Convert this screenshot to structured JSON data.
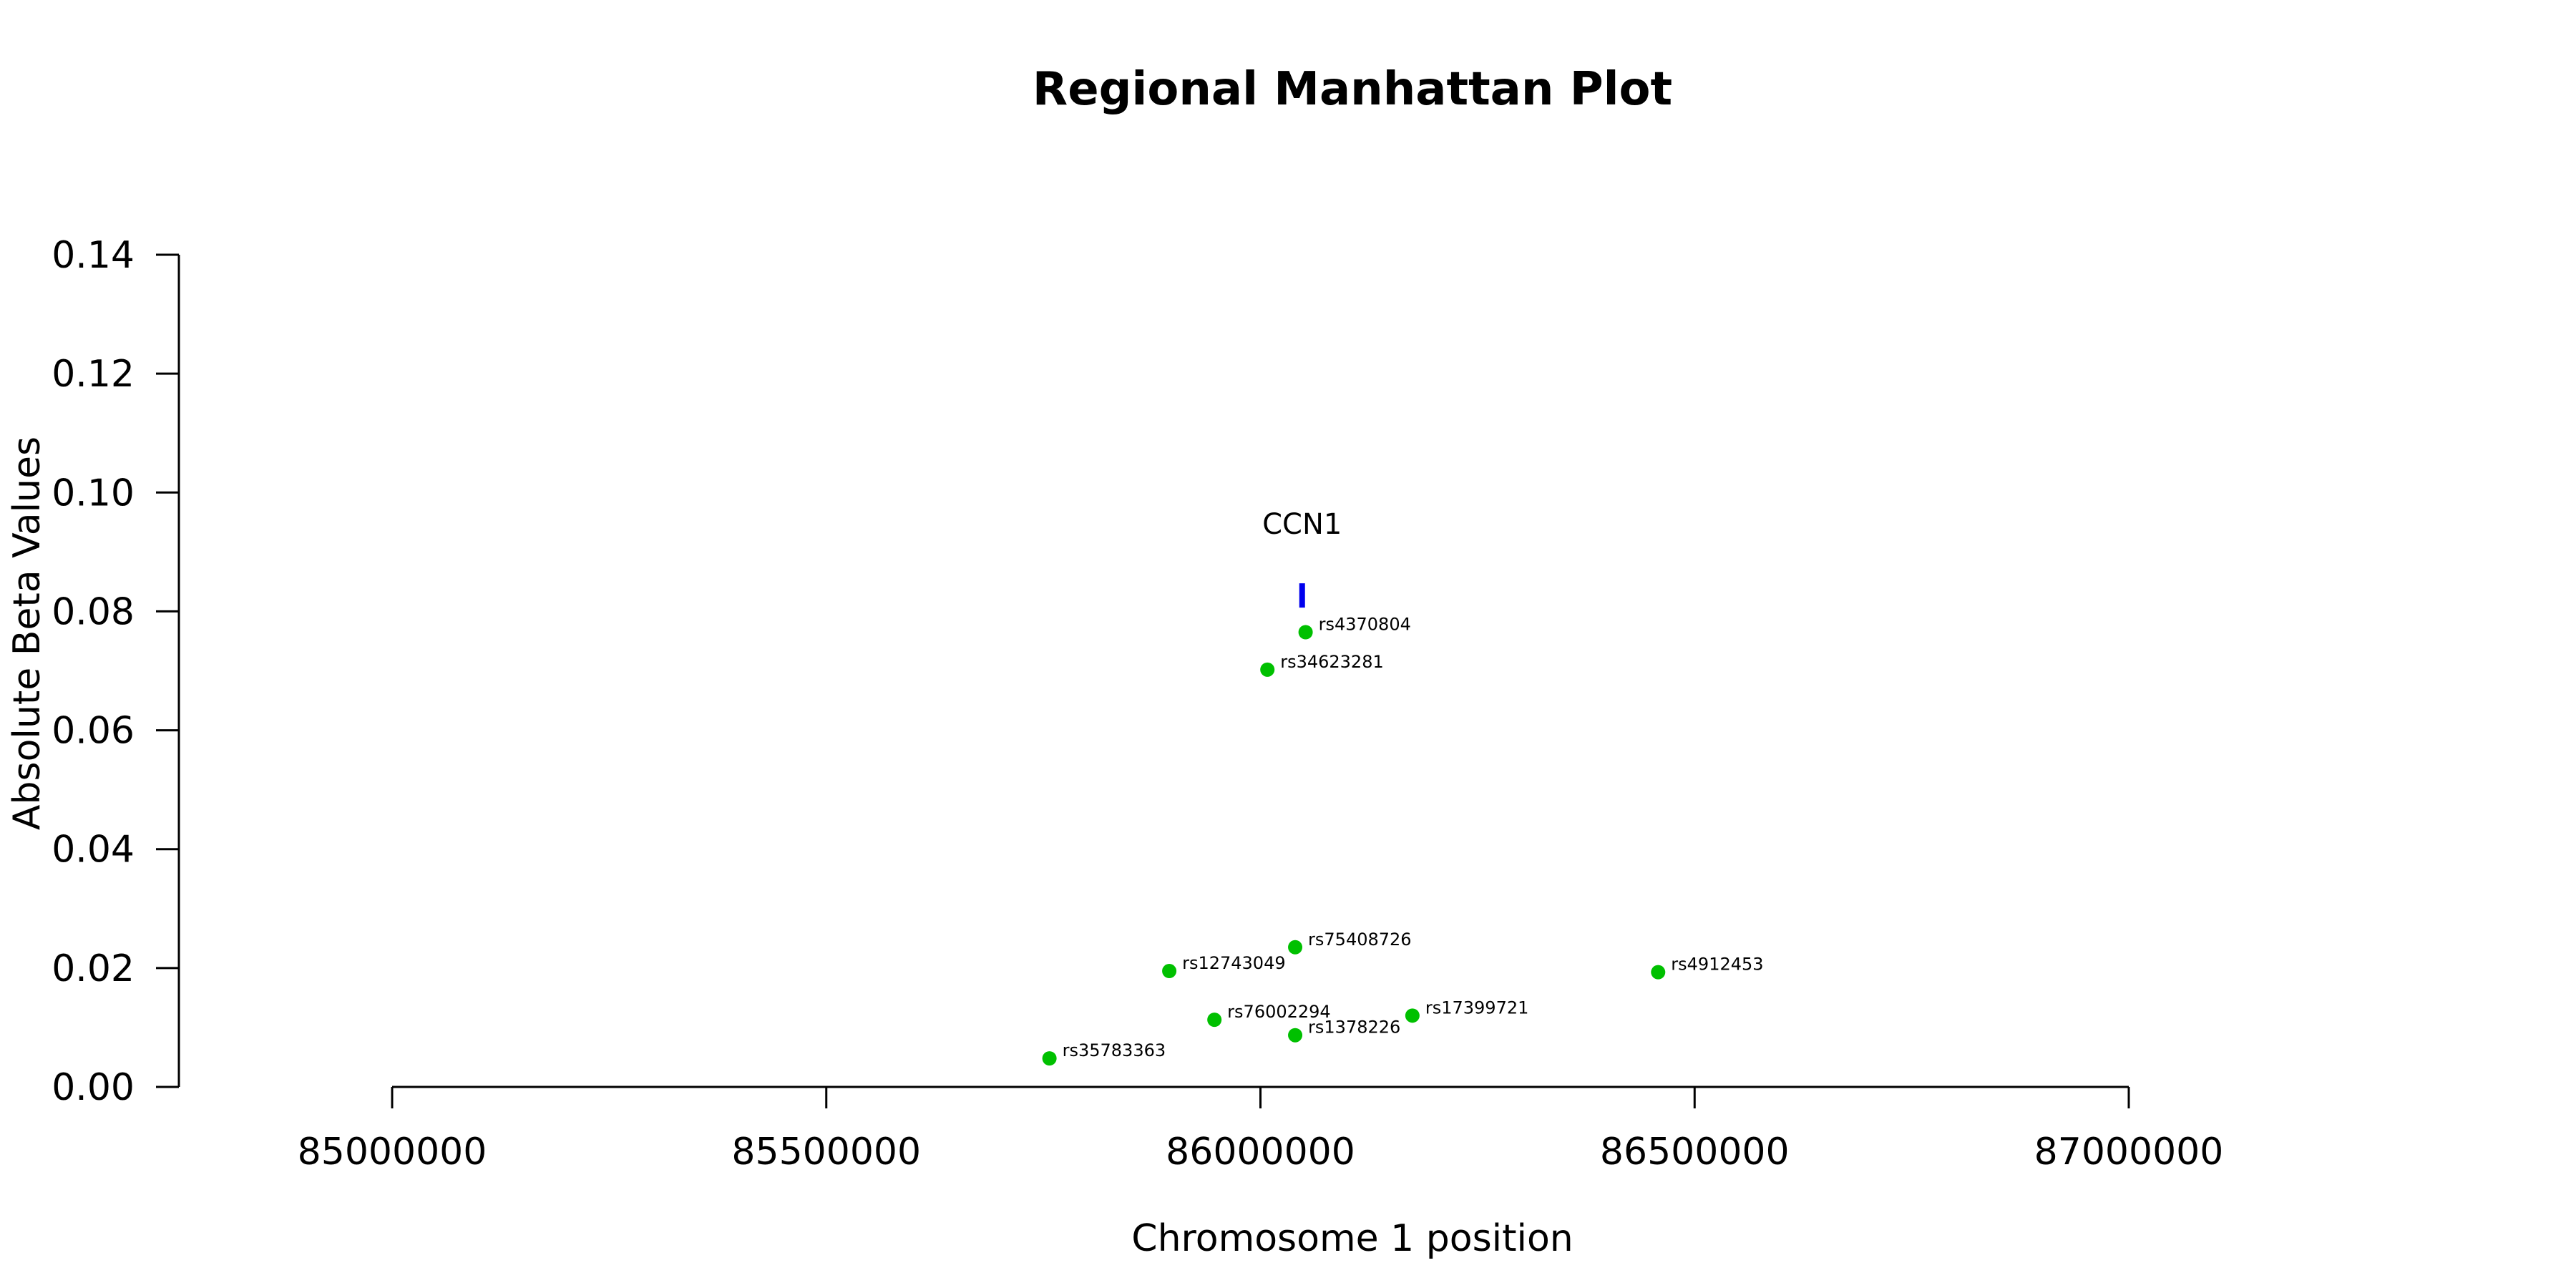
{
  "chart_data": {
    "type": "scatter",
    "title": "Regional Manhattan Plot",
    "xlabel": "Chromosome 1 position",
    "ylabel": "Absolute Beta Values",
    "xlim": [
      85000000,
      87000000
    ],
    "ylim": [
      0,
      0.14
    ],
    "x_ticks": [
      85000000,
      85500000,
      86000000,
      86500000,
      87000000
    ],
    "x_tick_labels": [
      "85000000",
      "85500000",
      "86000000",
      "86500000",
      "87000000"
    ],
    "y_ticks": [
      0,
      0.02,
      0.04,
      0.06,
      0.08,
      0.1,
      0.12,
      0.14
    ],
    "y_tick_labels": [
      "0.00",
      "0.02",
      "0.04",
      "0.06",
      "0.08",
      "0.10",
      "0.12",
      "0.14"
    ],
    "grid": false,
    "point_color": "#00c000",
    "gene_color": "#0000ee",
    "points": [
      {
        "label": "rs4370804",
        "x": 86052000,
        "y": 0.0765
      },
      {
        "label": "rs34623281",
        "x": 86008000,
        "y": 0.0702
      },
      {
        "label": "rs75408726",
        "x": 86040000,
        "y": 0.0235
      },
      {
        "label": "rs12743049",
        "x": 85895000,
        "y": 0.0195
      },
      {
        "label": "rs4912453",
        "x": 86458000,
        "y": 0.0193
      },
      {
        "label": "rs17399721",
        "x": 86175000,
        "y": 0.012
      },
      {
        "label": "rs76002294",
        "x": 85947000,
        "y": 0.0113
      },
      {
        "label": "rs1378226",
        "x": 86040000,
        "y": 0.0087
      },
      {
        "label": "rs35783363",
        "x": 85757000,
        "y": 0.0048
      }
    ],
    "genes": [
      {
        "name": "CCN1",
        "start": 86046000,
        "end": 86050000,
        "y": 0.0828
      }
    ]
  }
}
